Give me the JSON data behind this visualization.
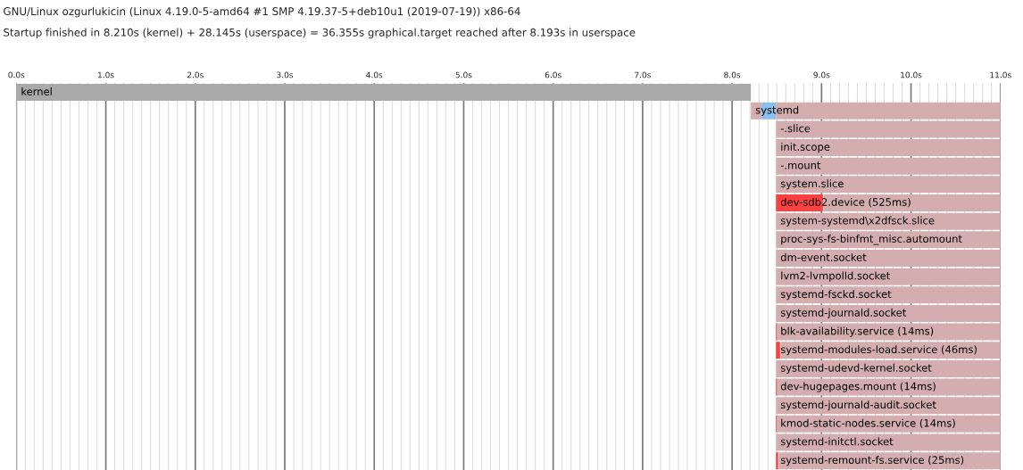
{
  "chart_data": {
    "type": "bar",
    "orientation": "horizontal",
    "title": "GNU/Linux ozgurlukicin (Linux 4.19.0-5-amd64 #1 SMP 4.19.37-5+deb10u1 (2019-07-19)) x86-64",
    "subtitle": "Startup finished in 8.210s (kernel) + 28.145s (userspace) = 36.355s graphical.target reached after 8.193s in userspace",
    "categories": [
      "kernel",
      "systemd",
      "-.slice",
      "init.scope",
      "-.mount",
      "system.slice",
      "dev-sdb2.device (525ms)",
      "system-systemd\\x2dfsck.slice",
      "proc-sys-fs-binfmt_misc.automount",
      "dm-event.socket",
      "lvm2-lvmpolld.socket",
      "systemd-fsckd.socket",
      "systemd-journald.socket",
      "blk-availability.service (14ms)",
      "systemd-modules-load.service (46ms)",
      "systemd-udevd-kernel.socket",
      "dev-hugepages.mount (14ms)",
      "systemd-journald-audit.socket",
      "kmod-static-nodes.service (14ms)",
      "systemd-initctl.socket",
      "systemd-remount-fs.service (25ms)"
    ],
    "series": [
      {
        "colors": [
          "#aaaaaa",
          "#d4aeae",
          null,
          null,
          null,
          null,
          null,
          null,
          null,
          null,
          null,
          null,
          null,
          null,
          null,
          null,
          null,
          null,
          null,
          null,
          null
        ],
        "base": [
          0,
          8.21,
          null,
          null,
          null,
          null,
          null,
          null,
          null,
          null,
          null,
          null,
          null,
          null,
          null,
          null,
          null,
          null,
          null,
          null,
          null
        ],
        "values": [
          8.21,
          0.12,
          null,
          null,
          null,
          null,
          null,
          null,
          null,
          null,
          null,
          null,
          null,
          null,
          null,
          null,
          null,
          null,
          null,
          null,
          null
        ]
      },
      {
        "colors": [
          null,
          "#8cc0ec",
          null,
          null,
          null,
          null,
          "#ff4040",
          null,
          null,
          null,
          null,
          null,
          null,
          "#ff4040",
          "#ff4040",
          null,
          "#ff4040",
          null,
          "#ff4040",
          null,
          "#ff4040"
        ],
        "base": [
          null,
          8.33,
          null,
          null,
          null,
          null,
          8.49,
          null,
          null,
          null,
          null,
          null,
          null,
          8.49,
          8.49,
          null,
          8.49,
          null,
          8.49,
          null,
          8.49
        ],
        "values": [
          null,
          0.16,
          null,
          null,
          null,
          null,
          0.525,
          null,
          null,
          null,
          null,
          null,
          null,
          0.014,
          0.046,
          null,
          0.014,
          null,
          0.014,
          null,
          0.025
        ]
      },
      {
        "color": "#d4aeae",
        "base": [
          null,
          8.49,
          8.49,
          8.49,
          8.49,
          8.49,
          9.02,
          8.49,
          8.49,
          8.49,
          8.49,
          8.49,
          8.49,
          8.5,
          8.54,
          8.49,
          8.5,
          8.49,
          8.5,
          8.49,
          8.52
        ],
        "values": [
          null,
          2.51,
          2.51,
          2.51,
          2.51,
          2.51,
          1.98,
          2.51,
          2.51,
          2.51,
          2.51,
          2.51,
          2.51,
          2.5,
          2.46,
          2.51,
          2.5,
          2.51,
          2.5,
          2.51,
          2.48
        ]
      }
    ],
    "xlim": [
      0,
      11
    ],
    "xticks": [
      {
        "value": 0,
        "label": "0.0s"
      },
      {
        "value": 1,
        "label": "1.0s"
      },
      {
        "value": 2,
        "label": "2.0s"
      },
      {
        "value": 3,
        "label": "3.0s"
      },
      {
        "value": 4,
        "label": "4.0s"
      },
      {
        "value": 5,
        "label": "5.0s"
      },
      {
        "value": 6,
        "label": "6.0s"
      },
      {
        "value": 7,
        "label": "7.0s"
      },
      {
        "value": 8,
        "label": "8.0s"
      },
      {
        "value": 9,
        "label": "9.0s"
      },
      {
        "value": 10,
        "label": "10.0s"
      },
      {
        "value": 11,
        "label": "11.0s"
      }
    ],
    "grid": "x",
    "tick_labels": "x",
    "legend": false
  }
}
